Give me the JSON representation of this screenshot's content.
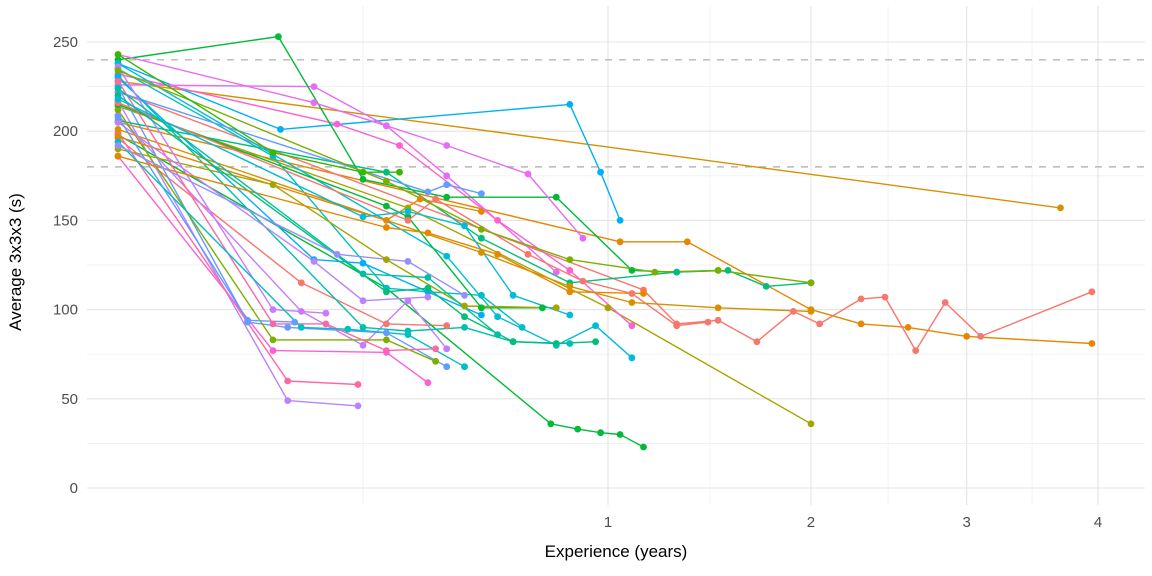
{
  "chart_data": {
    "type": "line",
    "title": "",
    "xlabel": "Experience (years)",
    "ylabel": "Average 3x3x3 (s)",
    "x_scale": "sqrt",
    "xlim": [
      0,
      4.3
    ],
    "ylim": [
      0,
      260
    ],
    "x_ticks": [
      1,
      2,
      3,
      4
    ],
    "y_ticks": [
      0,
      50,
      100,
      150,
      200,
      250
    ],
    "x_minor_ticks": [
      0.25,
      1.46,
      2.47,
      3.48
    ],
    "y_minor_ticks": [
      25,
      75,
      125,
      175,
      225
    ],
    "grid": true,
    "legend": "none",
    "grid_major_color": "#e4e4e4",
    "grid_minor_color": "#f1f1f1",
    "reference_lines": [
      {
        "y": 240,
        "style": "dashed",
        "color": "#b8b8b8"
      },
      {
        "y": 180,
        "style": "dashed",
        "color": "#b8b8b8"
      }
    ],
    "series": [
      {
        "color": "#D89000",
        "points": [
          [
            0,
            228
          ],
          [
            3.7,
            157
          ]
        ]
      },
      {
        "color": "#E58700",
        "points": [
          [
            0,
            205
          ],
          [
            1.05,
            138
          ],
          [
            1.35,
            138
          ],
          [
            2.0,
            100
          ],
          [
            2.3,
            92
          ],
          [
            2.6,
            90
          ],
          [
            3.0,
            85
          ],
          [
            3.95,
            81
          ]
        ]
      },
      {
        "color": "#F8766D",
        "points": [
          [
            0,
            222
          ],
          [
            1.15,
            111
          ],
          [
            1.3,
            92
          ],
          [
            1.5,
            94
          ],
          [
            1.7,
            82
          ],
          [
            1.9,
            99
          ],
          [
            2.05,
            92
          ],
          [
            2.3,
            106
          ],
          [
            2.45,
            107
          ],
          [
            2.65,
            77
          ],
          [
            2.85,
            104
          ],
          [
            3.1,
            85
          ],
          [
            3.95,
            110
          ]
        ]
      },
      {
        "color": "#F8766D",
        "points": [
          [
            0,
            196
          ],
          [
            0.14,
            115
          ],
          [
            0.3,
            92
          ],
          [
            0.45,
            91
          ]
        ]
      },
      {
        "color": "#A3A500",
        "points": [
          [
            0,
            214
          ],
          [
            0.35,
            157
          ],
          [
            1.0,
            101
          ],
          [
            2.0,
            36
          ]
        ]
      },
      {
        "color": "#00BA38",
        "points": [
          [
            0,
            198
          ],
          [
            0.3,
            112
          ],
          [
            0.78,
            36
          ],
          [
            0.88,
            33
          ],
          [
            0.97,
            31
          ],
          [
            1.05,
            30
          ],
          [
            1.15,
            23
          ]
        ]
      },
      {
        "color": "#00B0F6",
        "points": [
          [
            0,
            238
          ],
          [
            0.11,
            201
          ],
          [
            0.85,
            215
          ],
          [
            0.97,
            177
          ],
          [
            1.05,
            150
          ]
        ]
      },
      {
        "color": "#E76BF3",
        "points": [
          [
            0,
            226
          ],
          [
            0.16,
            225
          ],
          [
            0.3,
            203
          ],
          [
            0.45,
            175
          ],
          [
            0.8,
            121
          ]
        ]
      },
      {
        "color": "#FD61D1",
        "points": [
          [
            0,
            232
          ],
          [
            0.2,
            204
          ],
          [
            0.33,
            192
          ],
          [
            0.6,
            150
          ],
          [
            0.85,
            122
          ],
          [
            1.1,
            91
          ]
        ]
      },
      {
        "color": "#00BA38",
        "points": [
          [
            0,
            240
          ],
          [
            0.107,
            253
          ],
          [
            0.25,
            173
          ],
          [
            0.45,
            163
          ],
          [
            0.8,
            163
          ],
          [
            1.1,
            122
          ],
          [
            1.3,
            121
          ],
          [
            1.5,
            122
          ]
        ]
      },
      {
        "color": "#00BFC4",
        "points": [
          [
            0,
            235
          ],
          [
            0.1,
            186
          ],
          [
            0.3,
            112
          ],
          [
            0.4,
            110
          ],
          [
            0.55,
            108
          ],
          [
            0.68,
            90
          ]
        ]
      },
      {
        "color": "#619CFF",
        "points": [
          [
            0,
            225
          ],
          [
            0.07,
            93
          ],
          [
            0.12,
            90
          ],
          [
            0.3,
            87
          ],
          [
            0.45,
            68
          ]
        ]
      },
      {
        "color": "#B983FF",
        "points": [
          [
            0,
            217
          ],
          [
            0.12,
            49
          ],
          [
            0.24,
            46
          ]
        ]
      },
      {
        "color": "#FF67A4",
        "points": [
          [
            0,
            199
          ],
          [
            0.12,
            60
          ],
          [
            0.24,
            58
          ]
        ]
      },
      {
        "color": "#C77CFF",
        "points": [
          [
            0,
            209
          ],
          [
            0.14,
            99
          ],
          [
            0.25,
            80
          ],
          [
            0.35,
            105
          ],
          [
            0.45,
            78
          ]
        ]
      },
      {
        "color": "#00C0AF",
        "points": [
          [
            0,
            231
          ],
          [
            0.25,
            90
          ],
          [
            0.35,
            88
          ],
          [
            0.5,
            90
          ],
          [
            0.65,
            82
          ],
          [
            0.85,
            81
          ]
        ]
      },
      {
        "color": "#00BF7D",
        "points": [
          [
            0,
            206
          ],
          [
            0.3,
            177
          ],
          [
            0.55,
            140
          ],
          [
            0.85,
            115
          ],
          [
            1.3,
            121
          ],
          [
            1.55,
            122
          ],
          [
            1.75,
            113
          ],
          [
            2.0,
            115
          ]
        ]
      },
      {
        "color": "#7CAE00",
        "points": [
          [
            0,
            212
          ],
          [
            0.1,
            83
          ],
          [
            0.3,
            83
          ],
          [
            0.42,
            71
          ]
        ]
      },
      {
        "color": "#D89000",
        "points": [
          [
            0,
            201
          ],
          [
            0.55,
            132
          ],
          [
            0.85,
            113
          ],
          [
            1.1,
            104
          ],
          [
            1.5,
            101
          ],
          [
            2.0,
            99
          ]
        ]
      },
      {
        "color": "#00BCD8",
        "points": [
          [
            0,
            238
          ],
          [
            0.45,
            130
          ],
          [
            0.6,
            96
          ],
          [
            0.8,
            80
          ],
          [
            0.95,
            91
          ],
          [
            1.1,
            73
          ]
        ]
      },
      {
        "color": "#619CFF",
        "points": [
          [
            0,
            222
          ],
          [
            0.4,
            166
          ],
          [
            0.45,
            170
          ],
          [
            0.55,
            165
          ]
        ]
      },
      {
        "color": "#00BA38",
        "points": [
          [
            0,
            215
          ],
          [
            0.3,
            158
          ],
          [
            0.35,
            152
          ],
          [
            0.55,
            101
          ],
          [
            0.75,
            101
          ]
        ]
      },
      {
        "color": "#E58700",
        "points": [
          [
            0,
            197
          ],
          [
            0.3,
            150
          ],
          [
            0.38,
            162
          ],
          [
            0.55,
            155
          ]
        ]
      },
      {
        "color": "#E76BF3",
        "points": [
          [
            0,
            243
          ],
          [
            0.16,
            216
          ],
          [
            0.3,
            203
          ],
          [
            0.45,
            192
          ],
          [
            0.7,
            176
          ],
          [
            0.9,
            140
          ]
        ]
      },
      {
        "color": "#F8766D",
        "points": [
          [
            0,
            216
          ],
          [
            0.35,
            150
          ],
          [
            0.42,
            162
          ],
          [
            0.7,
            131
          ],
          [
            0.9,
            116
          ],
          [
            1.1,
            109
          ],
          [
            1.3,
            91
          ],
          [
            1.45,
            93
          ]
        ]
      },
      {
        "color": "#A3A500",
        "points": [
          [
            0,
            190
          ],
          [
            0.1,
            170
          ],
          [
            0.3,
            128
          ],
          [
            0.5,
            102
          ],
          [
            0.8,
            101
          ]
        ]
      },
      {
        "color": "#00B0F6",
        "points": [
          [
            0,
            230
          ],
          [
            0.16,
            128
          ],
          [
            0.25,
            126
          ],
          [
            0.4,
            110
          ],
          [
            0.55,
            97
          ]
        ]
      },
      {
        "color": "#B983FF",
        "points": [
          [
            0,
            205
          ],
          [
            0.16,
            127
          ],
          [
            0.25,
            105
          ],
          [
            0.4,
            107
          ]
        ]
      },
      {
        "color": "#C77CFF",
        "points": [
          [
            0,
            236
          ],
          [
            0.1,
            100
          ],
          [
            0.18,
            98
          ]
        ]
      },
      {
        "color": "#FF67A4",
        "points": [
          [
            0,
            228
          ],
          [
            0.1,
            92
          ],
          [
            0.18,
            92
          ],
          [
            0.3,
            77
          ],
          [
            0.42,
            78
          ]
        ]
      },
      {
        "color": "#00BF7D",
        "points": [
          [
            0,
            220
          ],
          [
            0.3,
            110
          ],
          [
            0.4,
            112
          ],
          [
            0.5,
            96
          ],
          [
            0.65,
            82
          ],
          [
            0.8,
            81
          ],
          [
            0.95,
            82
          ]
        ]
      },
      {
        "color": "#7CAE00",
        "points": [
          [
            0,
            234
          ],
          [
            0.3,
            172
          ],
          [
            0.55,
            145
          ],
          [
            0.85,
            128
          ],
          [
            1.2,
            121
          ],
          [
            1.5,
            122
          ],
          [
            2.0,
            115
          ]
        ]
      },
      {
        "color": "#39B600",
        "points": [
          [
            0,
            243
          ],
          [
            0.1,
            188
          ],
          [
            0.25,
            177
          ],
          [
            0.33,
            177
          ]
        ]
      },
      {
        "color": "#00BCD8",
        "points": [
          [
            0,
            218
          ],
          [
            0.25,
            152
          ],
          [
            0.35,
            155
          ],
          [
            0.5,
            147
          ],
          [
            0.65,
            108
          ],
          [
            0.85,
            97
          ]
        ]
      },
      {
        "color": "#FD61D1",
        "points": [
          [
            0,
            186
          ],
          [
            0.1,
            77
          ],
          [
            0.3,
            76
          ],
          [
            0.4,
            59
          ]
        ]
      },
      {
        "color": "#619CFF",
        "points": [
          [
            0,
            208
          ],
          [
            0.07,
            94
          ],
          [
            0.13,
            93
          ]
        ]
      },
      {
        "color": "#E58700",
        "points": [
          [
            0,
            186
          ],
          [
            0.3,
            146
          ],
          [
            0.4,
            143
          ],
          [
            0.6,
            131
          ],
          [
            0.85,
            110
          ],
          [
            1.15,
            109
          ]
        ]
      },
      {
        "color": "#00BFC4",
        "points": [
          [
            0,
            194
          ],
          [
            0.14,
            90
          ],
          [
            0.22,
            89
          ],
          [
            0.35,
            86
          ],
          [
            0.5,
            68
          ]
        ]
      },
      {
        "color": "#00C19F",
        "points": [
          [
            0,
            224
          ],
          [
            0.25,
            120
          ],
          [
            0.4,
            118
          ],
          [
            0.6,
            86
          ]
        ]
      },
      {
        "color": "#9590FF",
        "points": [
          [
            0,
            192
          ],
          [
            0.2,
            131
          ],
          [
            0.35,
            127
          ],
          [
            0.5,
            108
          ]
        ]
      }
    ]
  }
}
